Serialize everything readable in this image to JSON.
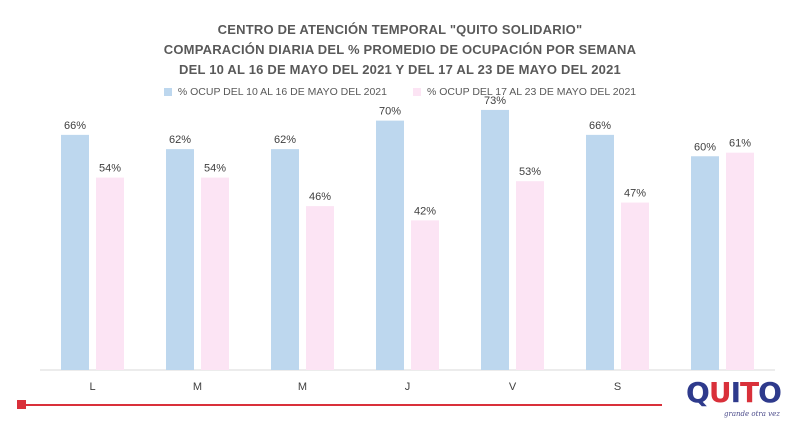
{
  "chart_data": {
    "type": "bar",
    "title_lines": [
      "CENTRO DE ATENCIÓN TEMPORAL \"QUITO SOLIDARIO\"",
      "COMPARACIÓN  DIARIA DEL %  PROMEDIO DE OCUPACIÓN POR SEMANA",
      "DEL 10 AL 16 DE MAYO DEL 2021 Y DEL 17 AL 23 DE MAYO DEL 2021"
    ],
    "categories": [
      "L",
      "M",
      "M",
      "J",
      "V",
      "S",
      ""
    ],
    "series": [
      {
        "name": "% OCUP DEL 10 AL 16 DE MAYO DEL  2021",
        "color": "#bdd7ee",
        "values": [
          66,
          62,
          62,
          70,
          73,
          66,
          60
        ]
      },
      {
        "name": "% OCUP DEL 17 AL 23 DE MAYO DEL  2021",
        "color": "#fce4f4",
        "values": [
          54,
          54,
          46,
          42,
          53,
          47,
          61
        ]
      }
    ],
    "value_suffix": "%",
    "ylim": [
      0,
      80
    ],
    "grid": false,
    "legend_position": "top"
  },
  "logo": {
    "text": "QUITO",
    "tagline": "grande otra vez"
  },
  "colors": {
    "title": "#595959",
    "accent_red": "#d9303a",
    "logo_blue": "#2e3a8c"
  }
}
